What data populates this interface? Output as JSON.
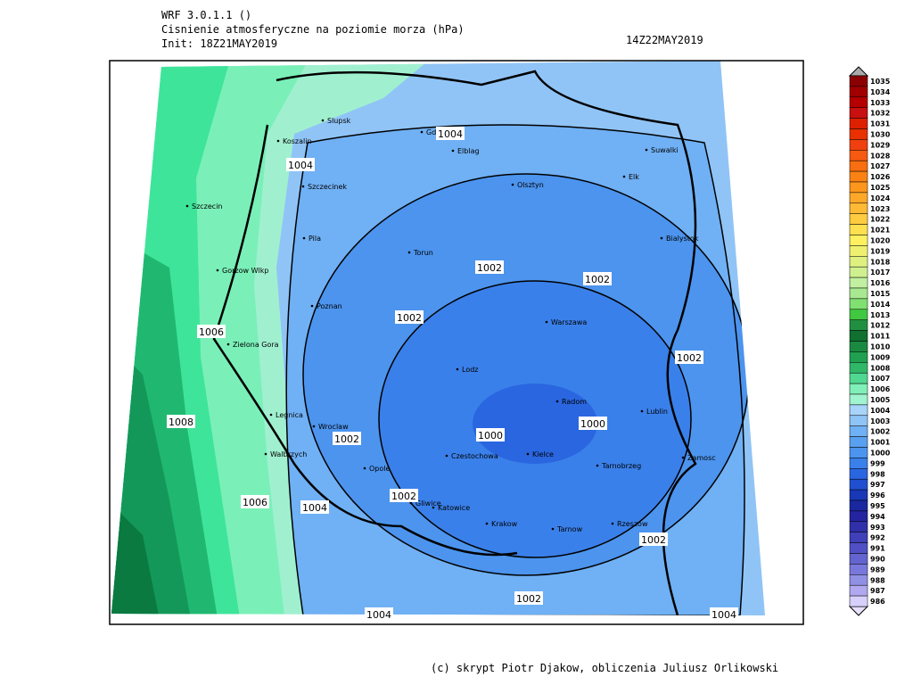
{
  "header": {
    "model": "WRF 3.0.1.1 ()",
    "field": "Cisnienie atmosferyczne na poziomie morza (hPa)",
    "init": "Init: 18Z21MAY2019",
    "valid": "14Z22MAY2019"
  },
  "cities": [
    "Slupsk",
    "Gdansk",
    "Koszalin",
    "Elblag",
    "Suwalki",
    "Olsztyn",
    "Elk",
    "Szczecinek",
    "Szczecin",
    "Pila",
    "Bialystok",
    "Torun",
    "Gorzow Wlkp",
    "Poznan",
    "Warszawa",
    "Zielona Gora",
    "Lodz",
    "Radom",
    "Lublin",
    "Legnica",
    "Wroclaw",
    "Czestochowa",
    "Kielce",
    "Walbrzych",
    "Opole",
    "Tarnobrzeg",
    "Zamosc",
    "Gliwice",
    "Katowice",
    "Krakow",
    "Rzeszow",
    "Tarnow"
  ],
  "contour_labels": [
    "1004",
    "1004",
    "1002",
    "1002",
    "1002",
    "1006",
    "1002",
    "1008",
    "1000",
    "1000",
    "1002",
    "1002",
    "1006",
    "1004",
    "1002",
    "1002",
    "1004",
    "1004"
  ],
  "colorbar": {
    "labels": [
      "1035",
      "1034",
      "1033",
      "1032",
      "1031",
      "1030",
      "1029",
      "1028",
      "1027",
      "1026",
      "1025",
      "1024",
      "1023",
      "1022",
      "1021",
      "1020",
      "1019",
      "1018",
      "1017",
      "1016",
      "1015",
      "1014",
      "1013",
      "1012",
      "1011",
      "1010",
      "1009",
      "1008",
      "1007",
      "1006",
      "1005",
      "1004",
      "1003",
      "1002",
      "1001",
      "1000",
      "999",
      "998",
      "997",
      "996",
      "995",
      "994",
      "993",
      "992",
      "991",
      "990",
      "989",
      "988",
      "987",
      "986"
    ]
  },
  "footer": "(c) skrypt Piotr Djakow, obliczenia Juliusz Orlikowski"
}
